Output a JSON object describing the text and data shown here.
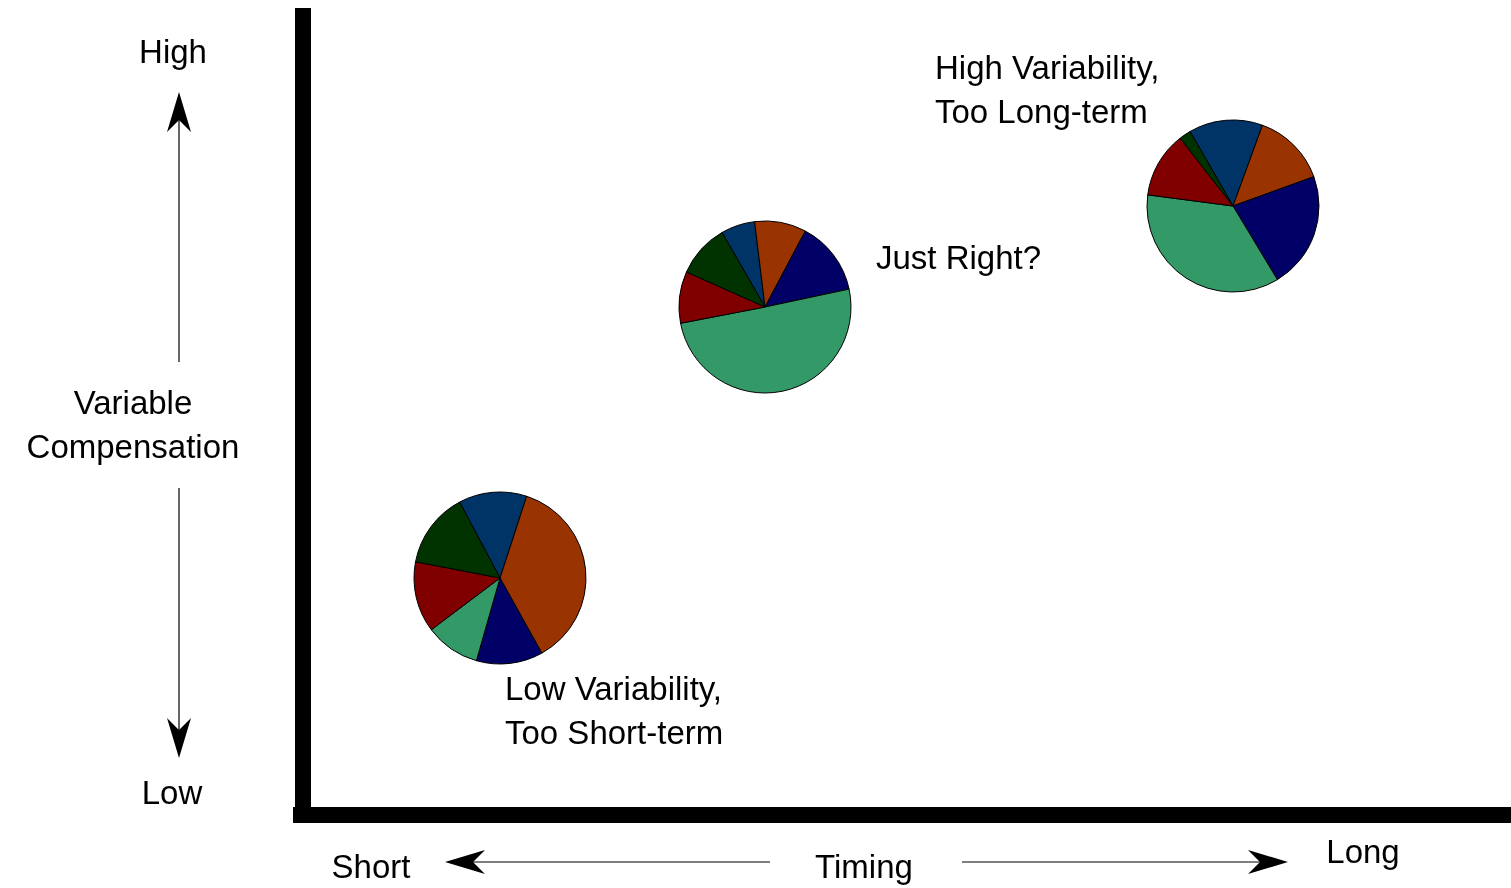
{
  "chart_data": [
    {
      "type": "pie",
      "title": "Low Variability,\nToo Short-term",
      "categories": [
        null,
        null,
        null,
        null,
        null,
        null
      ],
      "values": [
        12.8,
        36.9,
        12.5,
        10.3,
        13.3,
        14.2
      ],
      "colors": [
        "#003366",
        "#993300",
        "#000066",
        "#339966",
        "#800000",
        "#003300"
      ]
    },
    {
      "type": "pie",
      "title": "Just Right?",
      "categories": [
        null,
        null,
        null,
        null,
        null,
        null
      ],
      "values": [
        6.4,
        9.7,
        13.9,
        50.3,
        9.7,
        10.0
      ],
      "colors": [
        "#003366",
        "#993300",
        "#000066",
        "#339966",
        "#800000",
        "#003300"
      ]
    },
    {
      "type": "pie",
      "title": "High Variability,\nToo Long-term",
      "categories": [
        null,
        null,
        null,
        null,
        null,
        null
      ],
      "values": [
        13.9,
        13.9,
        21.9,
        35.7,
        12.4,
        2.2
      ],
      "colors": [
        "#003366",
        "#993300",
        "#000066",
        "#339966",
        "#800000",
        "#003300"
      ]
    },
    {
      "type": "other",
      "ylabel": "Variable\nCompensation",
      "xlabel": "Timing",
      "annotations": [
        "High",
        "Low",
        "Short",
        "Long"
      ]
    }
  ]
}
